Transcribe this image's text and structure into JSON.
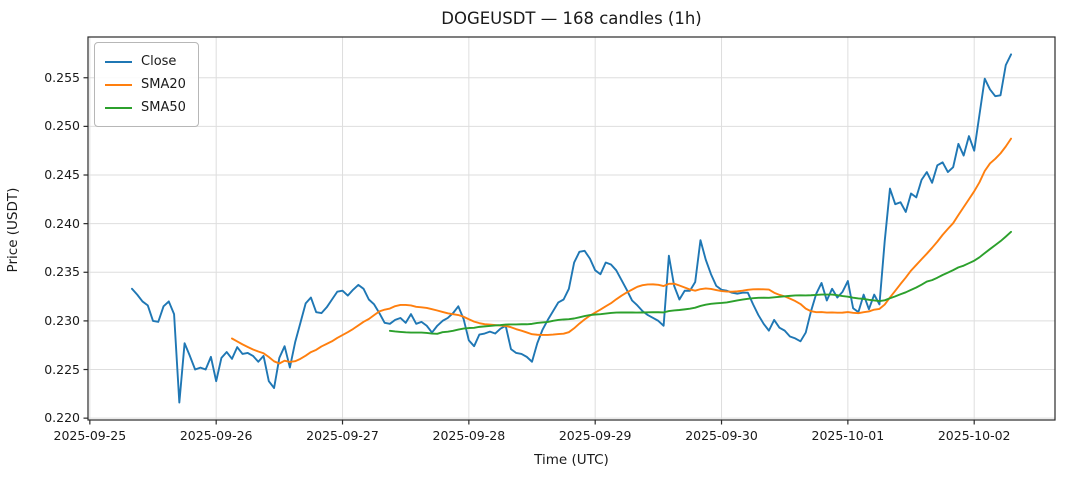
{
  "figure": {
    "title": "DOGEUSDT — 168 candles (1h)",
    "xlabel": "Time (UTC)",
    "ylabel": "Price (USDT)"
  },
  "chart_data": {
    "type": "line",
    "title": "DOGEUSDT — 168 candles (1h)",
    "symbol": "DOGEUSDT",
    "interval": "1h",
    "candle_count": 168,
    "xlabel": "Time (UTC)",
    "ylabel": "Price (USDT)",
    "x_start": "2025-09-25 08:00",
    "x_end": "2025-10-02 07:00",
    "x_tick_labels": [
      "2025-09-25",
      "2025-09-26",
      "2025-09-27",
      "2025-09-28",
      "2025-09-29",
      "2025-09-30",
      "2025-10-01",
      "2025-10-02"
    ],
    "x_tick_hour_offsets": [
      -8,
      16,
      40,
      64,
      88,
      112,
      136,
      160
    ],
    "y_ticks": [
      0.22,
      0.225,
      0.23,
      0.235,
      0.24,
      0.245,
      0.25,
      0.255
    ],
    "y_tick_labels": [
      "0.220",
      "0.225",
      "0.230",
      "0.235",
      "0.240",
      "0.245",
      "0.250",
      "0.255"
    ],
    "ylim": [
      0.2198,
      0.2592
    ],
    "grid": true,
    "grid_color": "#dedede",
    "spine_color": "#2a2a2a",
    "legend_position": "upper-left",
    "series": [
      {
        "name": "Close",
        "color": "#1f77b4",
        "values": [
          0.2333,
          0.2327,
          0.232,
          0.2316,
          0.23,
          0.2299,
          0.2315,
          0.232,
          0.2307,
          0.2216,
          0.2277,
          0.2264,
          0.225,
          0.2252,
          0.225,
          0.2263,
          0.2238,
          0.2262,
          0.2268,
          0.2261,
          0.2273,
          0.2266,
          0.2267,
          0.2264,
          0.2258,
          0.2264,
          0.2238,
          0.2231,
          0.2262,
          0.2274,
          0.2252,
          0.2278,
          0.2298,
          0.2318,
          0.2324,
          0.2309,
          0.2308,
          0.2314,
          0.2322,
          0.233,
          0.2331,
          0.2326,
          0.2332,
          0.2337,
          0.2333,
          0.2322,
          0.2317,
          0.2308,
          0.2298,
          0.2297,
          0.2301,
          0.2303,
          0.2298,
          0.2307,
          0.2297,
          0.2299,
          0.2295,
          0.2288,
          0.2295,
          0.23,
          0.2303,
          0.2308,
          0.2315,
          0.2302,
          0.228,
          0.2274,
          0.2286,
          0.2287,
          0.2289,
          0.2287,
          0.2292,
          0.2295,
          0.2271,
          0.2267,
          0.2266,
          0.2263,
          0.2258,
          0.2277,
          0.2291,
          0.2301,
          0.231,
          0.2319,
          0.2322,
          0.2333,
          0.236,
          0.2371,
          0.2372,
          0.2364,
          0.2352,
          0.2348,
          0.236,
          0.2358,
          0.2352,
          0.2342,
          0.2332,
          0.2321,
          0.2316,
          0.231,
          0.2306,
          0.2303,
          0.23,
          0.2295,
          0.2367,
          0.2336,
          0.2322,
          0.2331,
          0.2331,
          0.234,
          0.2383,
          0.2363,
          0.2348,
          0.2336,
          0.2332,
          0.2331,
          0.2329,
          0.2328,
          0.2329,
          0.2329,
          0.2317,
          0.2306,
          0.2297,
          0.229,
          0.2301,
          0.2293,
          0.229,
          0.2284,
          0.2282,
          0.2279,
          0.2288,
          0.231,
          0.2328,
          0.2339,
          0.2321,
          0.2333,
          0.2324,
          0.233,
          0.2341,
          0.2313,
          0.2309,
          0.2327,
          0.2312,
          0.2327,
          0.2317,
          0.2382,
          0.2436,
          0.242,
          0.2422,
          0.2412,
          0.2431,
          0.2427,
          0.2445,
          0.2453,
          0.2442,
          0.246,
          0.2463,
          0.2453,
          0.2458,
          0.2482,
          0.247,
          0.249,
          0.2475,
          0.2512,
          0.2549,
          0.2538,
          0.2531,
          0.2532,
          0.2563,
          0.2574
        ]
      },
      {
        "name": "SMA20",
        "color": "#ff7f0e",
        "derived": "rolling-mean-of-Close",
        "window": 20
      },
      {
        "name": "SMA50",
        "color": "#2ca02c",
        "derived": "rolling-mean-of-Close",
        "window": 50
      }
    ]
  }
}
